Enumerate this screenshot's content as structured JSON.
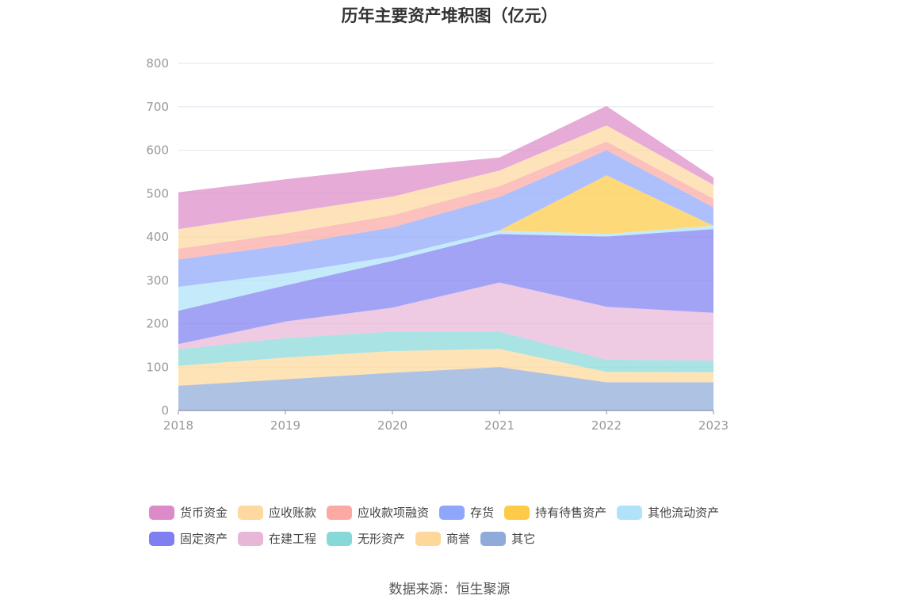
{
  "chart_data": {
    "type": "area",
    "stacked": true,
    "title": "历年主要资产堆积图（亿元）",
    "x": [
      "2018",
      "2019",
      "2020",
      "2021",
      "2022",
      "2023"
    ],
    "ylim": [
      0,
      800
    ],
    "yticks": [
      0,
      100,
      200,
      300,
      400,
      500,
      600,
      700,
      800
    ],
    "grid": true,
    "legend_position": "bottom",
    "series": [
      {
        "name": "其它",
        "color": "#8fabd9",
        "values": [
          57,
          72,
          87,
          100,
          65,
          65
        ]
      },
      {
        "name": "商誉",
        "color": "#fdd89a",
        "values": [
          46,
          50,
          50,
          42,
          24,
          23
        ]
      },
      {
        "name": "无形资产",
        "color": "#88d8d8",
        "values": [
          38,
          45,
          45,
          40,
          28,
          27
        ]
      },
      {
        "name": "在建工程",
        "color": "#e8b7d8",
        "values": [
          12,
          38,
          55,
          113,
          122,
          110
        ]
      },
      {
        "name": "固定资产",
        "color": "#7f7ff2",
        "values": [
          77,
          83,
          108,
          112,
          162,
          193
        ]
      },
      {
        "name": "其他流动资产",
        "color": "#aee3fa",
        "values": [
          55,
          28,
          10,
          8,
          6,
          8
        ]
      },
      {
        "name": "持有待售资产",
        "color": "#fdcb47",
        "values": [
          0,
          0,
          0,
          0,
          135,
          0
        ]
      },
      {
        "name": "存货",
        "color": "#8fa7fb",
        "values": [
          63,
          65,
          67,
          77,
          58,
          42
        ]
      },
      {
        "name": "应收款项融资",
        "color": "#fba9a2",
        "values": [
          25,
          27,
          28,
          25,
          20,
          20
        ]
      },
      {
        "name": "应收账款",
        "color": "#fdd8a0",
        "values": [
          45,
          47,
          43,
          36,
          37,
          32
        ]
      },
      {
        "name": "货币资金",
        "color": "#dc8bc8",
        "values": [
          85,
          78,
          67,
          30,
          45,
          17
        ]
      }
    ]
  },
  "legend": {
    "row1": [
      {
        "label": "货币资金",
        "color": "#dc8bc8"
      },
      {
        "label": "应收账款",
        "color": "#fdd8a0"
      },
      {
        "label": "应收款项融资",
        "color": "#fba9a2"
      },
      {
        "label": "存货",
        "color": "#8fa7fb"
      },
      {
        "label": "持有待售资产",
        "color": "#fdcb47"
      },
      {
        "label": "其他流动资产",
        "color": "#aee3fa"
      }
    ],
    "row2": [
      {
        "label": "固定资产",
        "color": "#7f7ff2"
      },
      {
        "label": "在建工程",
        "color": "#e8b7d8"
      },
      {
        "label": "无形资产",
        "color": "#88d8d8"
      },
      {
        "label": "商誉",
        "color": "#fdd89a"
      },
      {
        "label": "其它",
        "color": "#8fabd9"
      }
    ]
  },
  "source": "数据来源：恒生聚源"
}
